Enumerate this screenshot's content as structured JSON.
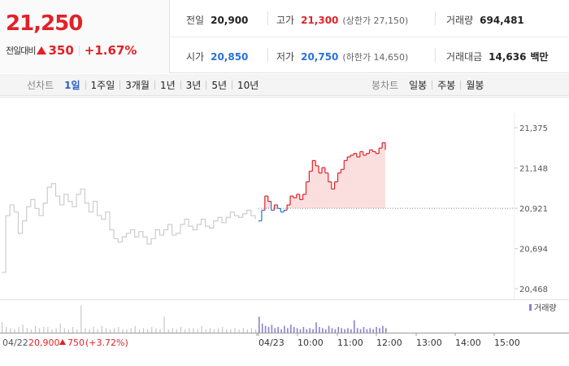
{
  "summary": {
    "price": "21,250",
    "change_label": "전일대비",
    "change_amount": "350",
    "change_percent": "+1.67%",
    "prev_close": {
      "label": "전일",
      "value": "20,900"
    },
    "open": {
      "label": "시가",
      "value": "20,850"
    },
    "high": {
      "label": "고가",
      "value": "21,300",
      "limit": "(상한가 27,150)"
    },
    "low": {
      "label": "저가",
      "value": "20,750",
      "limit": "(하한가 14,650)"
    },
    "volume": {
      "label": "거래량",
      "value": "694,481"
    },
    "trade_value": {
      "label": "거래대금",
      "value": "14,636",
      "unit": "백만"
    }
  },
  "toolbar": {
    "line_chart_label": "선차트",
    "periods": [
      "1일",
      "1주일",
      "3개월",
      "1년",
      "3년",
      "5년",
      "10년"
    ],
    "active_period": "1일",
    "candle_chart_label": "봉차트",
    "candle_periods": [
      "일봉",
      "주봉",
      "월봉"
    ]
  },
  "colors": {
    "up": "#e12228",
    "down": "#2a72d6",
    "prev_day_line": "#cccccc",
    "accent": "#2a5cc8"
  },
  "chart_data": {
    "type": "line",
    "y_ticks": [
      "21,375",
      "21,148",
      "20,921",
      "20,694",
      "20,468"
    ],
    "ylim": [
      20468,
      21375
    ],
    "x_ticks": [
      "04/23",
      "10:00",
      "11:00",
      "12:00",
      "13:00",
      "14:00",
      "15:00"
    ],
    "baseline": 20921,
    "volume_legend": "거래량",
    "prev_day_info": {
      "date": "04/22",
      "close": "20,900",
      "change": "750",
      "change_percent": "(+3.72%)"
    },
    "series": [
      {
        "day": "04/22",
        "color": "#cccccc",
        "values": [
          20560,
          20880,
          20940,
          20900,
          20780,
          20850,
          20930,
          20970,
          20920,
          20880,
          20950,
          21040,
          21060,
          20990,
          20940,
          21000,
          20960,
          20930,
          21000,
          21030,
          20950,
          20900,
          20960,
          20880,
          20860,
          20900,
          20800,
          20750,
          20730,
          20760,
          20780,
          20800,
          20760,
          20790,
          20760,
          20720,
          20750,
          20800,
          20770,
          20800,
          20830,
          20770,
          20780,
          20830,
          20860,
          20820,
          20800,
          20830,
          20860,
          20820,
          20810,
          20850,
          20870,
          20840,
          20870,
          20900,
          20880,
          20870,
          20890,
          20910,
          20880,
          20860
        ]
      },
      {
        "day": "04/23",
        "values": [
          20850,
          20910,
          20990,
          20960,
          20910,
          20940,
          20920,
          20900,
          20910,
          20940,
          20990,
          20980,
          21000,
          20970,
          21000,
          21070,
          21130,
          21190,
          21160,
          21120,
          21150,
          21120,
          21070,
          21030,
          21070,
          21120,
          21140,
          21190,
          21210,
          21220,
          21230,
          21210,
          21240,
          21220,
          21230,
          21250,
          21240,
          21230,
          21260,
          21290,
          21250
        ]
      }
    ],
    "volume_04_22": [
      9,
      5,
      4,
      3,
      5,
      7,
      4,
      3,
      6,
      4,
      5,
      5,
      3,
      4,
      8,
      4,
      3,
      5,
      3,
      24,
      4,
      3,
      5,
      3,
      6,
      4,
      3,
      4,
      5,
      3,
      3,
      4,
      6,
      3,
      4,
      3,
      5,
      4,
      3,
      14,
      3,
      4,
      3,
      5,
      3,
      4,
      4,
      3,
      6,
      3,
      4,
      3,
      4,
      5,
      3,
      3,
      4,
      3,
      4,
      3,
      4,
      3
    ],
    "volume_04_23": [
      14,
      8,
      6,
      5,
      7,
      4,
      5,
      3,
      6,
      4,
      7,
      5,
      4,
      3,
      5,
      3,
      4,
      3,
      9,
      5,
      4,
      3,
      6,
      4,
      3,
      5,
      4,
      3,
      4,
      3,
      11,
      4,
      3,
      5,
      3,
      4,
      3,
      5,
      4,
      6,
      4
    ]
  }
}
